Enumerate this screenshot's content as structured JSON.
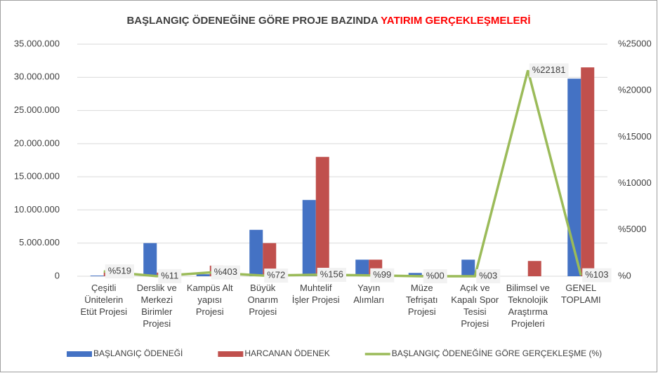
{
  "chart_data": {
    "type": "bar-line",
    "title": "BAŞLANGIÇ ÖDENEĞİNE GÖRE PROJE BAZINDA",
    "title_highlight": "YATIRIM GERÇEKLEŞMELERİ",
    "title_highlight_color": "#ff0000",
    "categories": [
      "Çeşitli\nÜnitelerin\nEtüt Projesi",
      "Derslik ve\nMerkezi\nBirimler\nProjesi",
      "Kampüs Alt\nyapısı\nProjesi",
      "Büyük\nOnarım\nProjesi",
      "Muhtelif\nİşler Projesi",
      "Yayın\nAlımları",
      "Müze\nTefrişatı\nProjesi",
      "Açık ve\nKapalı Spor\nTesisi\nProjesi",
      "Bilimsel ve\nTeknolojik\nAraştırma\nProjeleri",
      "GENEL\nTOPLAMI"
    ],
    "series": [
      {
        "name": "BAŞLANGIÇ ÖDENEĞİ",
        "color": "#4472c4",
        "kind": "bar",
        "values": [
          100000,
          5000000,
          300000,
          7000000,
          11500000,
          2500000,
          500000,
          2500000,
          0,
          29800000
        ]
      },
      {
        "name": "HARCANAN ÖDENEK",
        "color": "#c0504d",
        "kind": "bar",
        "values": [
          550000,
          550000,
          1600000,
          5000000,
          18000000,
          2500000,
          200000,
          80000,
          2300000,
          31500000
        ]
      },
      {
        "name": "BAŞLANGIÇ ÖDENEĞİNE GÖRE GERÇEKLEŞME (%)",
        "color": "#9bbb59",
        "kind": "line",
        "axis": "y2",
        "values": [
          519,
          11,
          403,
          72,
          156,
          99,
          0,
          3,
          22181,
          103
        ],
        "value_labels": [
          "%519",
          "%11",
          "%403",
          "%72",
          "%156",
          "%99",
          "%00",
          "%03",
          "%22181",
          "%103"
        ]
      }
    ],
    "ylim": [
      0,
      35000000
    ],
    "yticks": [
      {
        "value": 0,
        "label": "0"
      },
      {
        "value": 5000000,
        "label": "5.000.000"
      },
      {
        "value": 10000000,
        "label": "10.000.000"
      },
      {
        "value": 15000000,
        "label": "15.000.000"
      },
      {
        "value": 20000000,
        "label": "20.000.000"
      },
      {
        "value": 25000000,
        "label": "25.000.000"
      },
      {
        "value": 30000000,
        "label": "30.000.000"
      },
      {
        "value": 35000000,
        "label": "35.000.000"
      }
    ],
    "y2lim": [
      0,
      25000
    ],
    "y2ticks": [
      {
        "value": 0,
        "label": "%0"
      },
      {
        "value": 5000,
        "label": "%5000"
      },
      {
        "value": 10000,
        "label": "%10000"
      },
      {
        "value": 15000,
        "label": "%15000"
      },
      {
        "value": 20000,
        "label": "%20000"
      },
      {
        "value": 25000,
        "label": "%25000"
      }
    ],
    "legend": "bottom"
  }
}
